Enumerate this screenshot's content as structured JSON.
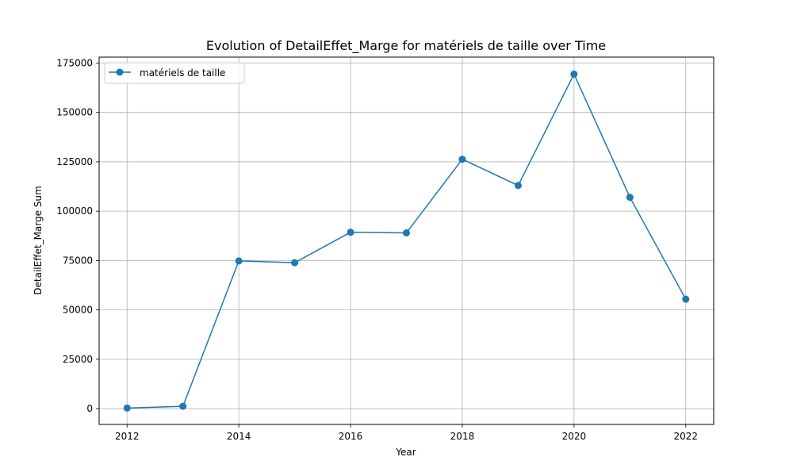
{
  "chart_data": {
    "type": "line",
    "title": "Evolution of DetailEffet_Marge for matériels de taille over Time",
    "xlabel": "Year",
    "ylabel": "DetailEffet_Marge Sum",
    "xlim": [
      2011.5,
      2022.5
    ],
    "ylim": [
      -8000,
      178000
    ],
    "x_ticks": [
      2012,
      2014,
      2016,
      2018,
      2020,
      2022
    ],
    "y_ticks": [
      0,
      25000,
      50000,
      75000,
      100000,
      125000,
      150000,
      175000
    ],
    "grid": true,
    "legend_position": "top-left",
    "series": [
      {
        "name": "matériels de taille",
        "color": "#1f77b4",
        "marker": "circle",
        "x": [
          2012,
          2013,
          2014,
          2015,
          2016,
          2017,
          2018,
          2019,
          2020,
          2021,
          2022
        ],
        "y": [
          300,
          1200,
          74800,
          73900,
          89300,
          89000,
          126300,
          113000,
          169400,
          107000,
          55400
        ]
      }
    ]
  }
}
